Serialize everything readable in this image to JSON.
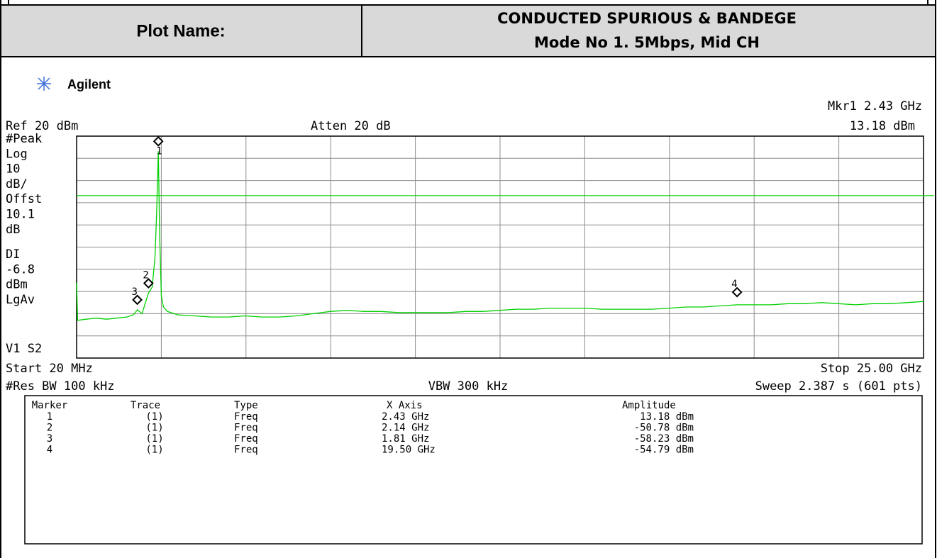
{
  "header": {
    "label": "Plot Name:",
    "title": [
      "CONDUCTED SPURIOUS & BANDEGE",
      "Mode No 1. 5Mbps, Mid CH"
    ]
  },
  "brand": "Agilent",
  "settings": {
    "top_left": "Ref 20 dBm",
    "top_center": "Atten 20 dB",
    "marker_readout": "Mkr1  2.43 GHz",
    "marker_value": "13.18 dBm",
    "side": [
      "#Peak",
      "Log",
      "10",
      "dB/",
      "Offst",
      "10.1",
      "dB",
      "DI",
      "-6.8",
      "dBm",
      "LgAv",
      "V1  S2"
    ],
    "start": "Start 20 MHz",
    "stop": "Stop 25.00 GHz",
    "rbw": "#Res BW 100 kHz",
    "vbw": "VBW 300 kHz",
    "sweep": "Sweep 2.387 s (601 pts)"
  },
  "chart_data": {
    "type": "line",
    "color": "#00d000",
    "x": [
      0.02,
      0.05,
      0.3,
      0.6,
      0.9,
      1.2,
      1.5,
      1.7,
      1.81,
      1.95,
      2.05,
      2.14,
      2.25,
      2.33,
      2.38,
      2.43,
      2.47,
      2.52,
      2.58,
      2.7,
      3.0,
      3.5,
      4.0,
      4.5,
      5.0,
      5.5,
      6.0,
      6.5,
      7.0,
      7.5,
      8.0,
      8.5,
      9.0,
      9.5,
      10.0,
      10.5,
      11.0,
      11.5,
      12.0,
      12.5,
      13.0,
      13.5,
      14.0,
      14.5,
      15.0,
      15.5,
      16.0,
      16.5,
      17.0,
      17.5,
      18.0,
      18.5,
      19.0,
      19.5,
      20.0,
      20.5,
      21.0,
      21.5,
      22.0,
      22.5,
      23.0,
      23.5,
      24.0,
      24.5,
      25.0
    ],
    "values": [
      -46,
      -63,
      -62.5,
      -62,
      -62.5,
      -62,
      -61.5,
      -60.5,
      -58.23,
      -60,
      -55,
      -50.78,
      -48,
      -35,
      -15,
      13.18,
      -25,
      -52,
      -57,
      -59,
      -60.5,
      -61,
      -61.5,
      -61.5,
      -61,
      -61.5,
      -61.5,
      -61,
      -60,
      -59,
      -58.5,
      -59,
      -59,
      -59.5,
      -59.5,
      -59.5,
      -59.5,
      -59,
      -59,
      -58.5,
      -58,
      -58,
      -57.5,
      -57.5,
      -57.5,
      -58,
      -58,
      -58,
      -58,
      -57.5,
      -57,
      -57,
      -56.5,
      -56,
      -56,
      -56,
      -55.5,
      -55.5,
      -55,
      -55.5,
      -56,
      -55.5,
      -55.5,
      -55,
      -54.5
    ],
    "xlim": [
      0.02,
      25
    ],
    "ylim": [
      -80,
      20
    ],
    "xticks": [
      0.02,
      2.518,
      5.016,
      7.514,
      10.012,
      12.51,
      15.008,
      17.506,
      20.004,
      22.502,
      25
    ],
    "yticks": [
      -80,
      -70,
      -60,
      -50,
      -40,
      -30,
      -20,
      -10,
      0,
      10,
      20
    ],
    "display_line": -6.8,
    "markers": [
      {
        "label": "1",
        "x": 2.43,
        "y": 13.18
      },
      {
        "label": "2",
        "x": 2.14,
        "y": -50.78
      },
      {
        "label": "3",
        "x": 1.81,
        "y": -58.23
      },
      {
        "label": "4",
        "x": 19.5,
        "y": -54.79
      }
    ]
  },
  "marker_table": {
    "columns": [
      "Marker",
      "Trace",
      "Type",
      "X Axis",
      "Amplitude"
    ],
    "rows": [
      [
        "1",
        "(1)",
        "Freq",
        "2.43 GHz",
        "13.18 dBm"
      ],
      [
        "2",
        "(1)",
        "Freq",
        "2.14 GHz",
        "-50.78 dBm"
      ],
      [
        "3",
        "(1)",
        "Freq",
        "1.81 GHz",
        "-58.23 dBm"
      ],
      [
        "4",
        "(1)",
        "Freq",
        "19.50 GHz",
        "-54.79 dBm"
      ]
    ]
  }
}
